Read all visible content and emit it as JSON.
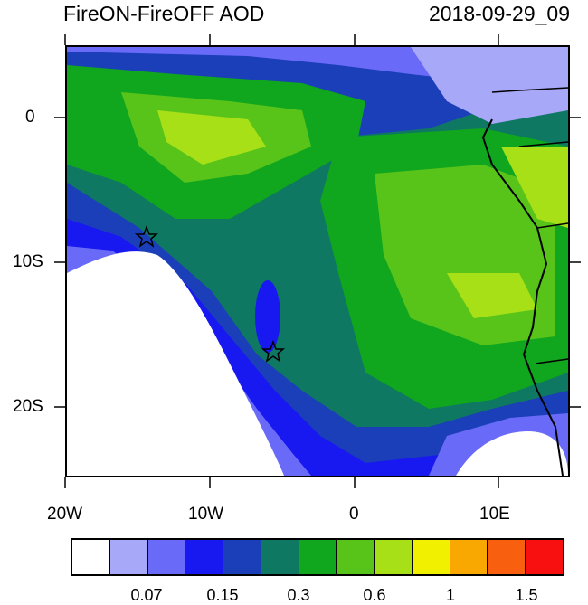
{
  "title": "FireON-FireOFF AOD",
  "timestamp": "2018-09-29_09",
  "axes": {
    "x_ticks": [
      "20W",
      "10W",
      "0",
      "10E"
    ],
    "y_ticks": [
      "0",
      "10S",
      "20S"
    ]
  },
  "colorbar": {
    "colors": [
      "#ffffff",
      "#a8a8f8",
      "#6a6af8",
      "#1818f0",
      "#1a3fb8",
      "#0e7862",
      "#10a61e",
      "#58c41a",
      "#a8e018",
      "#f0f000",
      "#f8a800",
      "#f86010",
      "#f81010"
    ],
    "labels": [
      "0.07",
      "0.15",
      "0.3",
      "0.6",
      "1",
      "1.5"
    ]
  },
  "markers": [
    "star-marker",
    "star-marker"
  ]
}
